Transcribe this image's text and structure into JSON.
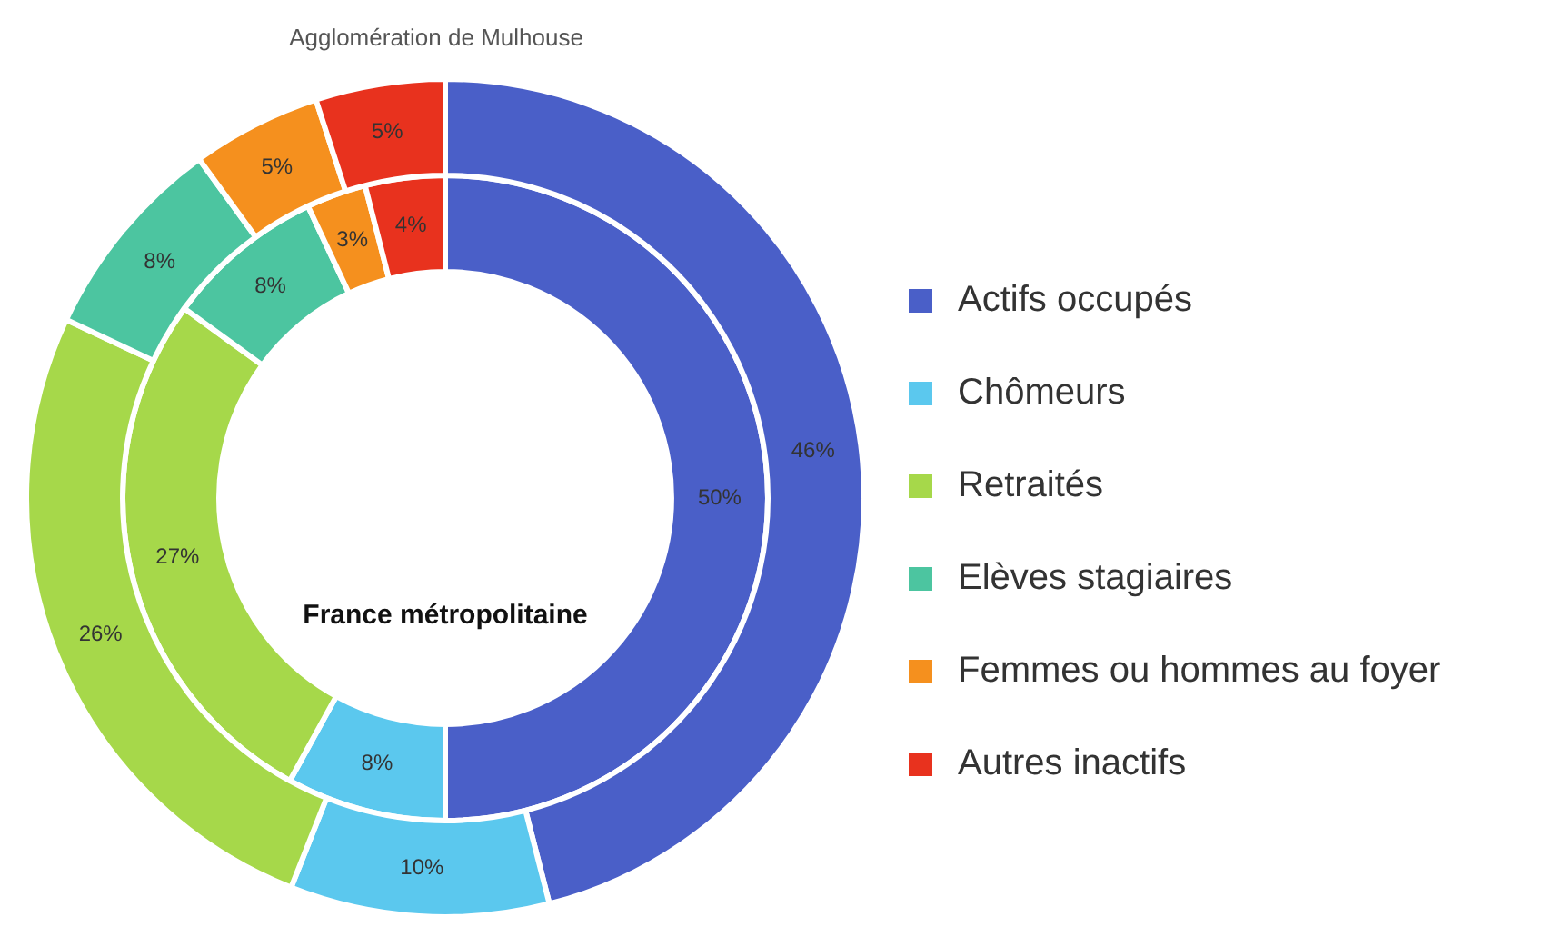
{
  "chart_data": {
    "type": "donut",
    "categories": [
      "Actifs occupés",
      "Chômeurs",
      "Retraités",
      "Elèves stagiaires",
      "Femmes ou hommes au foyer",
      "Autres inactifs"
    ],
    "colors": [
      "#4a5fc8",
      "#5bc8ee",
      "#a6d84a",
      "#4cc5a0",
      "#f5901e",
      "#e8321e"
    ],
    "series": [
      {
        "name": "Agglomération de Mulhouse",
        "values": [
          46,
          10,
          26,
          8,
          5,
          5
        ],
        "value_labels": [
          "46%",
          "10%",
          "26%",
          "8%",
          "5%",
          "5%"
        ]
      },
      {
        "name": "France métropolitaine",
        "values": [
          50,
          8,
          27,
          8,
          3,
          4
        ],
        "value_labels": [
          "50%",
          "8%",
          "27%",
          "8%",
          "3%",
          "4%"
        ]
      }
    ],
    "legend": "right"
  }
}
